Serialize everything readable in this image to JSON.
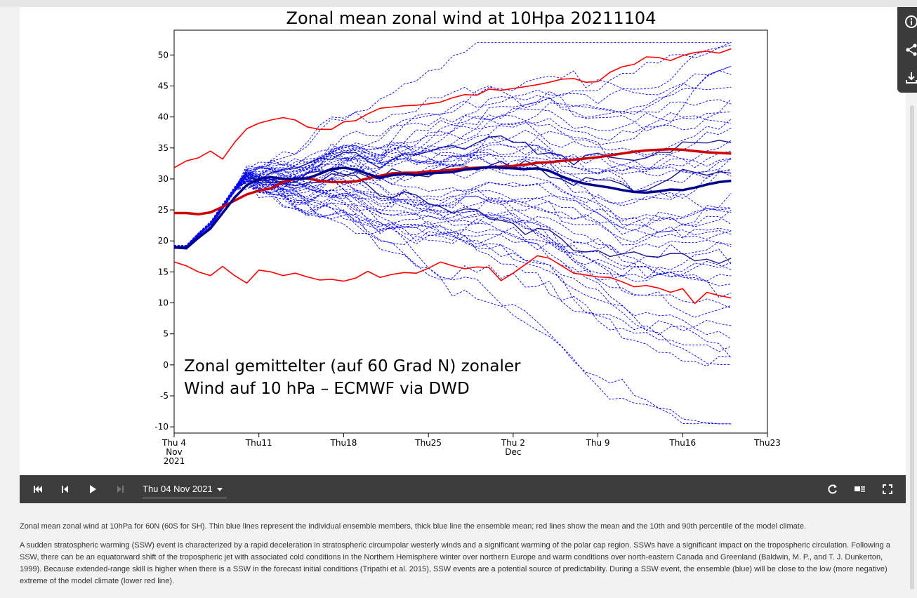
{
  "chart_data": {
    "type": "line",
    "title": "Zonal mean zonal wind at 10Hpa 20211104",
    "xlabel": "",
    "ylabel": "",
    "x_tick_labels": [
      {
        "lines": [
          "Thu 4",
          "Nov",
          "2021"
        ],
        "day": 0
      },
      {
        "lines": [
          "Thu11"
        ],
        "day": 7
      },
      {
        "lines": [
          "Thu18"
        ],
        "day": 14
      },
      {
        "lines": [
          "Thu25"
        ],
        "day": 21
      },
      {
        "lines": [
          "Thu 2",
          "Dec"
        ],
        "day": 28
      },
      {
        "lines": [
          "Thu 9"
        ],
        "day": 35
      },
      {
        "lines": [
          "Thu16"
        ],
        "day": 42
      },
      {
        "lines": [
          "Thu23"
        ],
        "day": 49
      }
    ],
    "xlim": [
      0,
      49
    ],
    "ylim": [
      -11,
      54
    ],
    "y_ticks": [
      -10,
      -5,
      0,
      5,
      10,
      15,
      20,
      25,
      30,
      35,
      40,
      45,
      50
    ],
    "grid": false,
    "x_days": [
      0,
      1,
      2,
      3,
      4,
      5,
      6,
      7,
      8,
      9,
      10,
      11,
      12,
      13,
      14,
      15,
      16,
      17,
      18,
      19,
      20,
      21,
      22,
      23,
      24,
      25,
      26,
      27,
      28,
      29,
      30,
      31,
      32,
      33,
      34,
      35,
      36,
      37,
      38,
      39,
      40,
      41,
      42,
      43,
      44,
      45,
      46
    ],
    "series": [
      {
        "role": "climate-90th-percentile",
        "color": "#ff0000",
        "values": [
          31.8,
          32.9,
          33.4,
          34.5,
          33.2,
          35.9,
          38.1,
          39.0,
          39.5,
          39.9,
          39.5,
          38.4,
          38.0,
          38.0,
          39.2,
          39.4,
          40.5,
          41.4,
          41.6,
          41.8,
          41.9,
          42.1,
          42.4,
          43.1,
          43.6,
          43.5,
          44.5,
          44.3,
          44.6,
          44.9,
          45.2,
          45.6,
          46.1,
          46.2,
          45.6,
          45.7,
          47.2,
          48.1,
          48.5,
          49.7,
          49.6,
          49.1,
          49.9,
          50.4,
          50.6,
          50.3,
          51.0
        ]
      },
      {
        "role": "climate-mean",
        "color": "#cc0000",
        "values": [
          24.5,
          24.5,
          24.3,
          24.6,
          25.5,
          26.5,
          27.5,
          28.1,
          28.5,
          29.5,
          30.0,
          30.1,
          29.7,
          29.5,
          29.5,
          29.6,
          30.1,
          30.5,
          30.9,
          31.0,
          31.0,
          31.2,
          31.3,
          31.5,
          31.7,
          31.8,
          31.9,
          32.0,
          32.1,
          32.3,
          32.6,
          32.7,
          32.9,
          33.1,
          33.3,
          33.5,
          33.8,
          34.1,
          34.4,
          34.6,
          34.7,
          34.8,
          34.7,
          34.5,
          34.3,
          34.2,
          34.1
        ]
      },
      {
        "role": "climate-10th-percentile",
        "color": "#ff0000",
        "values": [
          16.6,
          16.0,
          15.0,
          14.4,
          15.9,
          14.4,
          13.2,
          15.3,
          15.0,
          14.4,
          14.8,
          14.2,
          13.7,
          13.8,
          13.5,
          14.0,
          15.1,
          14.1,
          14.6,
          14.9,
          14.8,
          15.6,
          16.6,
          16.0,
          15.5,
          15.8,
          15.7,
          13.6,
          14.8,
          16.2,
          17.6,
          17.2,
          16.0,
          14.8,
          14.5,
          14.2,
          14.1,
          13.4,
          12.6,
          12.8,
          12.4,
          11.7,
          12.3,
          9.9,
          11.7,
          11.2,
          10.8
        ]
      },
      {
        "role": "ensemble-mean",
        "color": "#00008b",
        "values": [
          19.0,
          18.8,
          20.5,
          22.0,
          24.5,
          27.0,
          29.0,
          30.0,
          30.3,
          30.0,
          30.0,
          30.1,
          30.8,
          31.6,
          31.8,
          31.5,
          30.8,
          30.2,
          30.6,
          30.8,
          30.6,
          30.9,
          31.0,
          31.1,
          31.5,
          31.7,
          31.9,
          31.8,
          31.7,
          31.6,
          31.7,
          31.3,
          30.4,
          29.7,
          29.2,
          28.9,
          28.6,
          28.2,
          27.9,
          27.8,
          28.0,
          28.3,
          28.2,
          28.6,
          29.1,
          29.5,
          29.7
        ]
      }
    ],
    "ensemble_members": 51,
    "ensemble_member_color": "#0000ff"
  },
  "annotation": {
    "line1": "Zonal gemittelter (auf 60 Grad N) zonaler",
    "line2": "Wind auf 10 hPa – ECMWF via DWD"
  },
  "toolbar": {
    "icons": [
      "info-icon",
      "share-icon",
      "download-icon"
    ]
  },
  "player": {
    "date_label": "Thu 04 Nov 2021",
    "icons": [
      "first-frame-icon",
      "previous-frame-icon",
      "play-icon",
      "next-frame-icon",
      "loop-icon",
      "slideshow-icon",
      "fullscreen-icon"
    ]
  },
  "description": {
    "p1": "Zonal mean zonal wind at 10hPa for 60N (60S for SH). Thin blue lines represent the individual ensemble members, thick blue line the ensemble mean; red lines show the mean and the 10th and 90th percentile of the model climate.",
    "p2": "A sudden stratospheric warming (SSW) event is characterized by a rapid deceleration in stratospheric circumpolar westerly winds and a significant warming of the polar cap region. SSWs have a significant impact on the tropospheric circulation. Following a SSW, there can be an equatorward shift of the tropospheric jet with associated cold conditions in the Northern Hemisphere winter over northern Europe and warm conditions over north-eastern Canada and Greenland (Baldwin, M. P., and T. J. Dunkerton, 1999). Because extended-range skill is higher when there is a SSW in the forecast initial conditions (Tripathi et al. 2015), SSW events are a potential source of predictability. During a SSW event, the ensemble (blue) will be close to the low (more negative) extreme of the model climate (lower red line)."
  }
}
